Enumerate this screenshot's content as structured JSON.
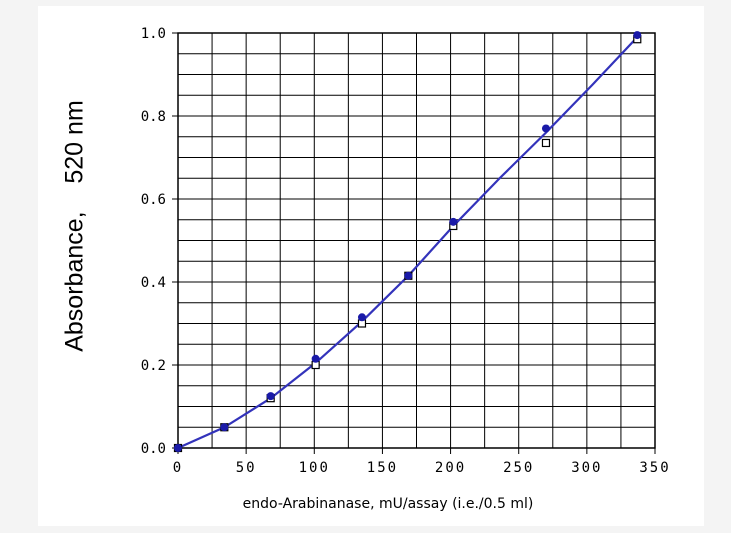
{
  "chart_data": {
    "type": "scatter",
    "title": "",
    "xlabel": "endo-Arabinanase,  mU/assay (i.e./0.5 ml)",
    "ylabel": "Absorbance,    520 nm",
    "xlim": [
      0,
      350
    ],
    "ylim": [
      0,
      1.0
    ],
    "x_ticks": [
      "0",
      "50",
      "100",
      "150",
      "200",
      "250",
      "300",
      "350"
    ],
    "y_ticks": [
      "0.0",
      "0.2",
      "0.4",
      "0.6",
      "0.8",
      "1.0"
    ],
    "grid": true,
    "series": [
      {
        "marker": "filled-circle",
        "color": "#1a1aa8",
        "x": [
          0,
          34,
          68,
          101,
          135,
          169,
          202,
          270,
          337
        ],
        "y": [
          0.0,
          0.05,
          0.125,
          0.215,
          0.315,
          0.415,
          0.545,
          0.77,
          0.995
        ]
      },
      {
        "marker": "open-square",
        "color": "#000000",
        "x": [
          0,
          34,
          68,
          101,
          135,
          169,
          202,
          270,
          337
        ],
        "y": [
          0.0,
          0.05,
          0.12,
          0.2,
          0.3,
          0.415,
          0.535,
          0.735,
          0.985
        ]
      },
      {
        "marker": "line",
        "color": "#3333bb",
        "x": [
          0,
          34,
          68,
          101,
          135,
          169,
          202,
          236,
          270,
          304,
          337
        ],
        "y": [
          0.0,
          0.05,
          0.12,
          0.205,
          0.305,
          0.415,
          0.535,
          0.65,
          0.76,
          0.875,
          0.99
        ]
      }
    ]
  }
}
